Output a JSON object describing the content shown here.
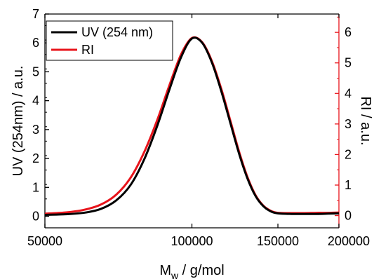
{
  "chart_data": {
    "type": "line",
    "xlabel": "M",
    "xlabel_sub": "w",
    "xlabel_rest": " / g/mol",
    "ylabel": "UV (254nm) / a.u.",
    "y2label": "RI / a.u.",
    "x_scale": "log",
    "xlim": [
      50000,
      200000
    ],
    "x_ticks": [
      50000,
      100000,
      150000,
      200000
    ],
    "x_tick_labels": [
      "50000",
      "100000",
      "150000",
      "200000"
    ],
    "ylim": [
      -0.4,
      7
    ],
    "y_ticks": [
      0,
      1,
      2,
      3,
      4,
      5,
      6,
      7
    ],
    "y_tick_labels": [
      "0",
      "1",
      "2",
      "3",
      "4",
      "5",
      "6",
      "7"
    ],
    "y2lim": [
      -0.4,
      6.6
    ],
    "y2_ticks": [
      0,
      1,
      2,
      3,
      4,
      5,
      6
    ],
    "y2_tick_labels": [
      "0",
      "1",
      "2",
      "3",
      "4",
      "5",
      "6"
    ],
    "legend_position": "top-left",
    "series": [
      {
        "name": "UV (254 nm)",
        "axis": "left",
        "color": "#000000",
        "x": [
          50000,
          55000,
          60000,
          65000,
          70000,
          75000,
          80000,
          85000,
          90000,
          95000,
          100000,
          105000,
          110000,
          115000,
          120000,
          125000,
          130000,
          135000,
          140000,
          145000,
          150000,
          160000,
          170000,
          180000,
          190000,
          200000
        ],
        "y": [
          0.05,
          0.07,
          0.12,
          0.25,
          0.55,
          1.1,
          2.0,
          3.15,
          4.4,
          5.5,
          6.15,
          6.0,
          5.3,
          4.3,
          3.2,
          2.15,
          1.3,
          0.7,
          0.35,
          0.17,
          0.1,
          0.08,
          0.08,
          0.08,
          0.09,
          0.1
        ]
      },
      {
        "name": "RI",
        "axis": "left",
        "color": "#e8141b",
        "x": [
          50000,
          55000,
          60000,
          65000,
          70000,
          75000,
          80000,
          85000,
          90000,
          95000,
          100000,
          105000,
          110000,
          115000,
          120000,
          125000,
          130000,
          135000,
          140000,
          145000,
          150000,
          160000,
          170000,
          180000,
          190000,
          200000
        ],
        "y": [
          0.09,
          0.13,
          0.22,
          0.4,
          0.75,
          1.35,
          2.25,
          3.35,
          4.55,
          5.6,
          6.17,
          6.02,
          5.35,
          4.38,
          3.28,
          2.22,
          1.35,
          0.73,
          0.37,
          0.19,
          0.12,
          0.11,
          0.11,
          0.12,
          0.12,
          0.13
        ]
      }
    ],
    "colors": {
      "left_axis": "#000000",
      "right_axis": "#e8141b"
    }
  }
}
